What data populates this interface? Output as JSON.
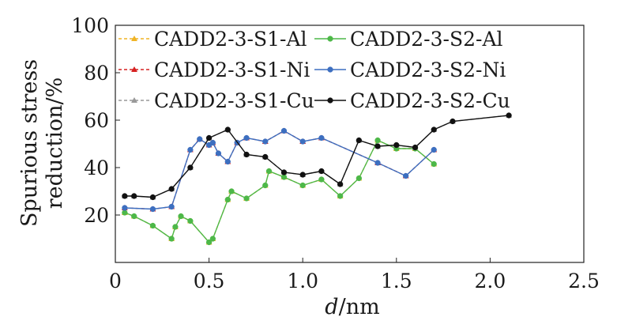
{
  "chart_data": {
    "type": "line",
    "xlabel_var": "d",
    "xlabel_unit": "/nm",
    "ylabel_line1": "Spurious stress",
    "ylabel_line2": "reduction/%",
    "xlim": [
      0,
      2.5
    ],
    "ylim": [
      0,
      100
    ],
    "x_ticks": [
      0,
      0.5,
      1.0,
      1.5,
      2.0,
      2.5
    ],
    "x_tick_labels": [
      "0",
      "0.5",
      "1.0",
      "1.5",
      "2.0",
      "2.5"
    ],
    "y_ticks": [
      20,
      40,
      60,
      80,
      100
    ],
    "y_tick_labels": [
      "20",
      "40",
      "60",
      "80",
      "100"
    ],
    "grid": false,
    "legend_placement": "top, two columns",
    "series": [
      {
        "name": "CADD2-3-S1-Al",
        "color": "#f0b323",
        "dash": true,
        "marker": "triangle",
        "x": [
          0.05,
          0.1,
          0.2,
          0.3,
          0.32,
          0.35,
          0.4,
          0.5,
          0.52,
          0.6,
          0.62,
          0.7,
          0.8,
          0.82,
          0.9,
          1.0,
          1.1,
          1.2,
          1.3,
          1.4,
          1.5,
          1.6,
          1.7
        ],
        "y": [
          21,
          19.5,
          15.5,
          10,
          15,
          19.5,
          17.5,
          8.5,
          10,
          26.5,
          30,
          27,
          32.5,
          38.5,
          36,
          32.5,
          35,
          28,
          35.5,
          51.5,
          48,
          48,
          41.5
        ]
      },
      {
        "name": "CADD2-3-S2-Al",
        "color": "#4db848",
        "dash": false,
        "marker": "circle",
        "x": [
          0.05,
          0.1,
          0.2,
          0.3,
          0.32,
          0.35,
          0.4,
          0.5,
          0.52,
          0.6,
          0.62,
          0.7,
          0.8,
          0.82,
          0.9,
          1.0,
          1.1,
          1.2,
          1.3,
          1.4,
          1.5,
          1.6,
          1.7
        ],
        "y": [
          21,
          19.5,
          15.5,
          10,
          15,
          19.5,
          17.5,
          8.5,
          10,
          26.5,
          30,
          27,
          32.5,
          38.5,
          36,
          32.5,
          35,
          28,
          35.5,
          51.5,
          48,
          48,
          41.5
        ]
      },
      {
        "name": "CADD2-3-S1-Ni",
        "color": "#d62020",
        "dash": true,
        "marker": "triangle",
        "x": [
          0.05,
          0.2,
          0.3,
          0.4,
          0.45,
          0.5,
          0.52,
          0.55,
          0.6,
          0.65,
          0.7,
          0.8,
          0.9,
          1.0,
          1.1,
          1.4,
          1.55,
          1.7
        ],
        "y": [
          23,
          22.5,
          23.5,
          47.5,
          52,
          49.5,
          50.5,
          46,
          42.5,
          50.5,
          52.5,
          51,
          55.5,
          51,
          52.5,
          42,
          36.5,
          47.5
        ]
      },
      {
        "name": "CADD2-3-S2-Ni",
        "color": "#3d6fc0",
        "dash": false,
        "marker": "circle",
        "x": [
          0.05,
          0.2,
          0.3,
          0.4,
          0.45,
          0.5,
          0.52,
          0.55,
          0.6,
          0.65,
          0.7,
          0.8,
          0.9,
          1.0,
          1.1,
          1.4,
          1.55,
          1.7
        ],
        "y": [
          23,
          22.5,
          23.5,
          47.5,
          52,
          49.5,
          50.5,
          46,
          42.5,
          50.5,
          52.5,
          51,
          55.5,
          51,
          52.5,
          42,
          36.5,
          47.5
        ]
      },
      {
        "name": "CADD2-3-S1-Cu",
        "color": "#999999",
        "dash": true,
        "marker": "triangle",
        "x": [
          0.05,
          0.1,
          0.2,
          0.3,
          0.4,
          0.5,
          0.6,
          0.7,
          0.8,
          0.9,
          1.0,
          1.1,
          1.2,
          1.3,
          1.4,
          1.5,
          1.6,
          1.7,
          1.8,
          2.1
        ],
        "y": [
          28,
          28,
          27.5,
          31,
          40,
          52.5,
          56,
          45.5,
          44.5,
          38,
          37,
          38.5,
          33,
          51.5,
          49,
          49.5,
          48.5,
          56,
          59.5,
          62
        ]
      },
      {
        "name": "CADD2-3-S2-Cu",
        "color": "#111111",
        "dash": false,
        "marker": "circle",
        "x": [
          0.05,
          0.1,
          0.2,
          0.3,
          0.4,
          0.5,
          0.6,
          0.7,
          0.8,
          0.9,
          1.0,
          1.1,
          1.2,
          1.3,
          1.4,
          1.5,
          1.6,
          1.7,
          1.8,
          2.1
        ],
        "y": [
          28,
          28,
          27.5,
          31,
          40,
          52.5,
          56,
          45.5,
          44.5,
          38,
          37,
          38.5,
          33,
          51.5,
          49,
          49.5,
          48.5,
          56,
          59.5,
          62
        ]
      }
    ],
    "legend_order": [
      0,
      1,
      2,
      3,
      4,
      5
    ]
  }
}
